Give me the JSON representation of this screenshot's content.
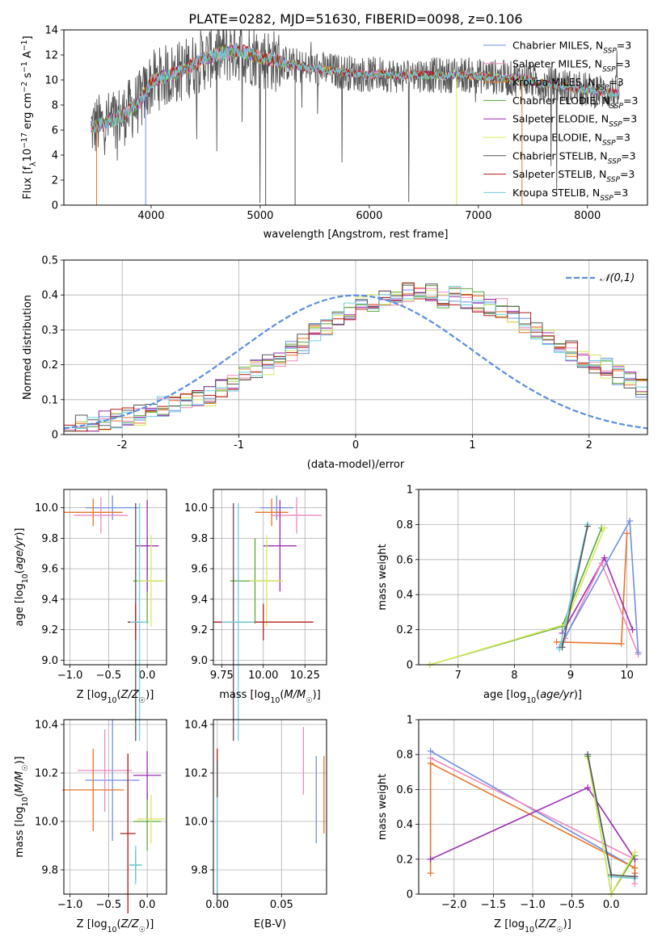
{
  "figure_title": "PLATE=0282, MJD=51630, FIBERID=0098, z=0.106",
  "colors": {
    "chabrier_miles": "#6f8fe0",
    "salpeter_miles": "#ee88c0",
    "kroupa_miles": "#e8742a",
    "chabrier_elodie": "#5aa83a",
    "salpeter_elodie": "#9a2db0",
    "kroupa_elodie": "#d8e85a",
    "chabrier_stelib": "#555555",
    "salpeter_stelib": "#b01c1c",
    "kroupa_stelib": "#6ed0e0",
    "normal": "#5b8ee0"
  },
  "chart_data": [
    {
      "id": "spectrum",
      "type": "line",
      "title": "PLATE=0282, MJD=51630, FIBERID=0098, z=0.106",
      "xlabel": "wavelength [Angstrom, rest frame]",
      "ylabel": "Flux [f_λ 10^-17 erg cm^-2 s^-1 A^-1]",
      "xlim": [
        3200,
        8550
      ],
      "ylim": [
        0,
        14
      ],
      "xticks": [
        4000,
        5000,
        6000,
        7000,
        8000
      ],
      "yticks": [
        0,
        2,
        4,
        6,
        8,
        10,
        12,
        14
      ],
      "grid": false,
      "legend_position": "top-right",
      "series": [
        {
          "name": "Chabrier MILES, N_SSP=3"
        },
        {
          "name": "Salpeter MILES, N_SSP=3"
        },
        {
          "name": "Kroupa MILES, N_SSP=3"
        },
        {
          "name": "Chabrier ELODIE, N_SSP=3"
        },
        {
          "name": "Salpeter ELODIE, N_SSP=3"
        },
        {
          "name": "Kroupa ELODIE, N_SSP=3"
        },
        {
          "name": "Chabrier STELIB, N_SSP=3"
        },
        {
          "name": "Salpeter STELIB, N_SSP=3"
        },
        {
          "name": "Kroupa STELIB, N_SSP=3"
        }
      ],
      "model_curve": {
        "x": [
          3450,
          3600,
          3750,
          3900,
          4000,
          4100,
          4200,
          4300,
          4400,
          4500,
          4600,
          4700,
          4800,
          4900,
          5000,
          5100,
          5200,
          5300,
          5400,
          5500,
          5600,
          5700,
          5800,
          5900,
          6000,
          6100,
          6200,
          6300,
          6400,
          6500,
          6600,
          6700,
          6800,
          6900,
          7000,
          7100,
          7200,
          7300,
          7400,
          7500,
          7600,
          7700,
          7800,
          7900,
          8000,
          8100,
          8200,
          8300
        ],
        "y": [
          6.2,
          6.6,
          7.2,
          8.3,
          9.8,
          10.2,
          10.5,
          10.8,
          11.3,
          11.7,
          12.0,
          12.2,
          12.4,
          12.1,
          11.8,
          11.6,
          11.4,
          11.2,
          11.0,
          10.9,
          10.8,
          10.7,
          10.6,
          10.5,
          10.4,
          10.5,
          10.4,
          10.3,
          10.5,
          10.4,
          10.4,
          10.3,
          10.5,
          10.4,
          10.3,
          10.3,
          10.2,
          10.1,
          10.1,
          9.9,
          9.7,
          9.6,
          9.5,
          9.3,
          9.2,
          9.1,
          9.0,
          8.9
        ]
      }
    },
    {
      "id": "residuals",
      "type": "step",
      "xlabel": "(data-model)/error",
      "ylabel": "Normed distribution",
      "xlim": [
        -2.5,
        2.5
      ],
      "ylim": [
        0,
        0.5
      ],
      "xticks": [
        -2,
        -1,
        0,
        1,
        2
      ],
      "yticks": [
        0.0,
        0.1,
        0.2,
        0.3,
        0.4,
        0.5
      ],
      "grid": true,
      "legend_position": "top-right",
      "legend_label": "𝒩(0,1)",
      "bin_width": 0.1,
      "bin_start": -2.5,
      "histogram": [
        0.025,
        0.03,
        0.035,
        0.04,
        0.045,
        0.05,
        0.055,
        0.07,
        0.08,
        0.085,
        0.095,
        0.1,
        0.11,
        0.13,
        0.15,
        0.17,
        0.19,
        0.2,
        0.22,
        0.24,
        0.26,
        0.29,
        0.31,
        0.33,
        0.35,
        0.37,
        0.38,
        0.39,
        0.4,
        0.41,
        0.4,
        0.41,
        0.39,
        0.4,
        0.39,
        0.38,
        0.37,
        0.36,
        0.35,
        0.32,
        0.3,
        0.28,
        0.26,
        0.24,
        0.21,
        0.2,
        0.19,
        0.17,
        0.15,
        0.13
      ]
    },
    {
      "id": "age_vs_Z",
      "type": "errorbar",
      "xlabel": "Z [log10(Z/Z☉)]",
      "ylabel": "age  [log10(age/yr)]",
      "xlim": [
        -1.08,
        0.25
      ],
      "ylim": [
        8.97,
        10.12
      ],
      "xticks": [
        -1.0,
        -0.5,
        0.0
      ],
      "yticks": [
        9.0,
        9.2,
        9.4,
        9.6,
        9.8,
        10.0
      ],
      "tick_labels_x": [
        "−1.0",
        "−0.5",
        "0.0"
      ],
      "tick_labels_y": [
        "9.0",
        "9.2",
        "9.4",
        "9.6",
        "9.8",
        "10.0"
      ],
      "points": [
        {
          "series": "Chabrier MILES",
          "x": -0.45,
          "y": 10.0,
          "xerr": 0.35,
          "yerr": 0.08
        },
        {
          "series": "Salpeter MILES",
          "x": -0.6,
          "y": 9.95,
          "xerr": 0.35,
          "yerr": 0.12
        },
        {
          "series": "Kroupa MILES",
          "x": -0.7,
          "y": 9.97,
          "xerr": 0.38,
          "yerr": 0.09
        },
        {
          "series": "Chabrier ELODIE",
          "x": 0.0,
          "y": 9.52,
          "xerr": 0.18,
          "yerr": 0.28
        },
        {
          "series": "Salpeter ELODIE",
          "x": 0.0,
          "y": 9.75,
          "xerr": 0.15,
          "yerr": 0.3
        },
        {
          "series": "Kroupa ELODIE",
          "x": 0.05,
          "y": 9.52,
          "xerr": 0.18,
          "yerr": 0.3
        },
        {
          "series": "Chabrier STELIB",
          "x": -0.15,
          "y": 9.25,
          "xerr": 0.1,
          "yerr": 0.78
        },
        {
          "series": "Salpeter STELIB",
          "x": -0.15,
          "y": 9.25,
          "xerr": 0.1,
          "yerr": 0.12
        },
        {
          "series": "Kroupa STELIB",
          "x": -0.1,
          "y": 9.25,
          "xerr": 0.12,
          "yerr": 0.78
        }
      ]
    },
    {
      "id": "age_vs_mass",
      "type": "errorbar",
      "xlabel": "mass [log10(M/M☉)]",
      "xlim": [
        9.7,
        10.38
      ],
      "ylim": [
        8.97,
        10.12
      ],
      "xticks": [
        9.75,
        10.0,
        10.25
      ],
      "tick_labels_x": [
        "9.75",
        "10.00",
        "10.25"
      ],
      "yticks": [
        9.0,
        9.2,
        9.4,
        9.6,
        9.8,
        10.0
      ],
      "tick_labels_y": [
        "9.0",
        "9.2",
        "9.4",
        "9.6",
        "9.8",
        "10.0"
      ],
      "points": [
        {
          "series": "Chabrier MILES",
          "x": 10.08,
          "y": 10.0,
          "xerr": 0.1,
          "yerr": 0.08
        },
        {
          "series": "Salpeter MILES",
          "x": 10.2,
          "y": 9.95,
          "xerr": 0.15,
          "yerr": 0.12
        },
        {
          "series": "Kroupa MILES",
          "x": 10.05,
          "y": 9.97,
          "xerr": 0.1,
          "yerr": 0.09
        },
        {
          "series": "Chabrier ELODIE",
          "x": 9.95,
          "y": 9.52,
          "xerr": 0.15,
          "yerr": 0.28
        },
        {
          "series": "Salpeter ELODIE",
          "x": 10.1,
          "y": 9.75,
          "xerr": 0.1,
          "yerr": 0.3
        },
        {
          "series": "Kroupa ELODIE",
          "x": 10.02,
          "y": 9.52,
          "xerr": 0.1,
          "yerr": 0.3
        },
        {
          "series": "Chabrier STELIB",
          "x": 9.82,
          "y": 9.25,
          "xerr": 0.05,
          "yerr": 0.78
        },
        {
          "series": "Salpeter STELIB",
          "x": 10.0,
          "y": 9.25,
          "xerr": 0.3,
          "yerr": 0.12
        },
        {
          "series": "Kroupa STELIB",
          "x": 9.85,
          "y": 9.25,
          "xerr": 0.1,
          "yerr": 0.78
        }
      ]
    },
    {
      "id": "mass_weight_vs_age",
      "type": "line",
      "xlabel": "age  [log10(age/yr)]",
      "ylabel": "mass weight",
      "xlim": [
        6.3,
        10.35
      ],
      "ylim": [
        0.0,
        1.0
      ],
      "xticks": [
        7,
        8,
        9,
        10
      ],
      "yticks": [
        0.0,
        0.2,
        0.4,
        0.6,
        0.8,
        1.0
      ],
      "grid": true,
      "series": [
        {
          "key": "kroupa_miles",
          "x": [
            8.75,
            9.9,
            10.0
          ],
          "y": [
            0.13,
            0.12,
            0.75
          ]
        },
        {
          "key": "chabrier_elodie",
          "x": [
            6.5,
            8.85,
            9.55
          ],
          "y": [
            0.0,
            0.22,
            0.78
          ]
        },
        {
          "key": "kroupa_elodie",
          "x": [
            6.5,
            8.9,
            9.6
          ],
          "y": [
            0.0,
            0.23,
            0.78
          ]
        },
        {
          "key": "salpeter_elodie",
          "x": [
            8.85,
            9.6,
            10.1
          ],
          "y": [
            0.18,
            0.61,
            0.2
          ]
        },
        {
          "key": "salpeter_miles",
          "x": [
            8.9,
            9.55,
            10.2
          ],
          "y": [
            0.15,
            0.58,
            0.06
          ]
        },
        {
          "key": "chabrier_miles",
          "x": [
            8.8,
            10.05,
            10.2
          ],
          "y": [
            0.1,
            0.82,
            0.07
          ]
        },
        {
          "key": "kroupa_stelib",
          "x": [
            8.8,
            9.3,
            9.3
          ],
          "y": [
            0.09,
            0.8,
            0.8
          ]
        },
        {
          "key": "chabrier_stelib",
          "x": [
            8.85,
            9.3
          ],
          "y": [
            0.1,
            0.79
          ]
        }
      ]
    },
    {
      "id": "mass_vs_Z",
      "type": "errorbar",
      "xlabel": "Z [log10(Z/Z☉)]",
      "ylabel": "mass [log10(M/M☉)]",
      "xlim": [
        -1.08,
        0.25
      ],
      "ylim": [
        9.7,
        10.42
      ],
      "xticks": [
        -1.0,
        -0.5,
        0.0
      ],
      "tick_labels_x": [
        "−1.0",
        "−0.5",
        "0.0"
      ],
      "yticks": [
        9.8,
        10.0,
        10.2,
        10.4
      ],
      "tick_labels_y": [
        "9.8",
        "10.0",
        "10.2",
        "10.4"
      ],
      "points": [
        {
          "series": "Chabrier MILES",
          "x": -0.45,
          "y": 10.17,
          "xerr": 0.35,
          "yerr": 0.25
        },
        {
          "series": "Salpeter MILES",
          "x": -0.55,
          "y": 10.21,
          "xerr": 0.35,
          "yerr": 0.17
        },
        {
          "series": "Kroupa MILES",
          "x": -0.7,
          "y": 10.13,
          "xerr": 0.4,
          "yerr": 0.17
        },
        {
          "series": "Chabrier ELODIE",
          "x": 0.0,
          "y": 10.0,
          "xerr": 0.18,
          "yerr": 0.12
        },
        {
          "series": "Salpeter ELODIE",
          "x": 0.0,
          "y": 10.19,
          "xerr": 0.18,
          "yerr": 0.1
        },
        {
          "series": "Kroupa ELODIE",
          "x": 0.05,
          "y": 10.01,
          "xerr": 0.18,
          "yerr": 0.1
        },
        {
          "series": "Chabrier STELIB",
          "x": -0.15,
          "y": 9.82,
          "xerr": 0.08,
          "yerr": 0.06
        },
        {
          "series": "Salpeter STELIB",
          "x": -0.25,
          "y": 9.95,
          "xerr": 0.1,
          "yerr": 0.33
        },
        {
          "series": "Kroupa STELIB",
          "x": -0.15,
          "y": 9.82,
          "xerr": 0.08,
          "yerr": 0.08
        }
      ]
    },
    {
      "id": "mass_vs_ebv",
      "type": "errorbar",
      "xlabel": "E(B-V)",
      "xlim": [
        -0.003,
        0.085
      ],
      "ylim": [
        9.7,
        10.42
      ],
      "xticks": [
        0.0,
        0.05
      ],
      "tick_labels_x": [
        "0.00",
        "0.05"
      ],
      "yticks": [
        9.8,
        10.0,
        10.2,
        10.4
      ],
      "tick_labels_y": [
        "9.8",
        "10.0",
        "10.2",
        "10.4"
      ],
      "points": [
        {
          "series": "Salpeter STELIB",
          "x": 0.0,
          "y": 10.0,
          "xerr": 0,
          "yerr": 0.3
        },
        {
          "series": "Chabrier STELIB",
          "x": 0.0,
          "y": 9.95,
          "xerr": 0,
          "yerr": 0.3
        },
        {
          "series": "Kroupa STELIB",
          "x": 0.0,
          "y": 9.9,
          "xerr": 0,
          "yerr": 0.2
        },
        {
          "series": "Salpeter MILES",
          "x": 0.067,
          "y": 10.25,
          "xerr": 0,
          "yerr": 0.14
        },
        {
          "series": "Chabrier MILES",
          "x": 0.077,
          "y": 10.09,
          "xerr": 0,
          "yerr": 0.18
        },
        {
          "series": "Kroupa MILES",
          "x": 0.083,
          "y": 10.11,
          "xerr": 0,
          "yerr": 0.16
        }
      ]
    },
    {
      "id": "mass_weight_vs_Z",
      "type": "line",
      "xlabel": "Z [log10(Z/Z☉)]",
      "ylabel": "mass weight",
      "xlim": [
        -2.45,
        0.45
      ],
      "ylim": [
        0.0,
        1.0
      ],
      "xticks": [
        -2.0,
        -1.5,
        -1.0,
        -0.5,
        0.0
      ],
      "tick_labels_x": [
        "−2.0",
        "−1.5",
        "−1.0",
        "−0.5",
        "0.0"
      ],
      "yticks": [
        0.0,
        0.2,
        0.4,
        0.6,
        0.8,
        1.0
      ],
      "grid": true,
      "series": [
        {
          "key": "chabrier_miles",
          "x": [
            -2.3,
            0.3,
            0.3
          ],
          "y": [
            0.82,
            0.15,
            0.1
          ]
        },
        {
          "key": "salpeter_miles",
          "x": [
            -2.3,
            0.3,
            0.3
          ],
          "y": [
            0.78,
            0.2,
            0.06
          ]
        },
        {
          "key": "kroupa_miles",
          "x": [
            -2.3,
            -2.3,
            0.3,
            0.3
          ],
          "y": [
            0.12,
            0.75,
            0.15,
            0.12
          ]
        },
        {
          "key": "salpeter_elodie",
          "x": [
            -2.3,
            -0.3,
            0.3
          ],
          "y": [
            0.2,
            0.61,
            0.2
          ]
        },
        {
          "key": "chabrier_elodie",
          "x": [
            -0.3,
            0.0,
            0.3
          ],
          "y": [
            0.79,
            0.0,
            0.22
          ]
        },
        {
          "key": "kroupa_elodie",
          "x": [
            -0.3,
            0.0,
            0.3
          ],
          "y": [
            0.78,
            0.0,
            0.24
          ]
        },
        {
          "key": "kroupa_stelib",
          "x": [
            -0.3,
            0.0,
            0.3
          ],
          "y": [
            0.8,
            0.1,
            0.09
          ]
        },
        {
          "key": "chabrier_stelib",
          "x": [
            -0.3,
            0.0,
            0.3
          ],
          "y": [
            0.8,
            0.11,
            0.1
          ]
        }
      ]
    }
  ]
}
